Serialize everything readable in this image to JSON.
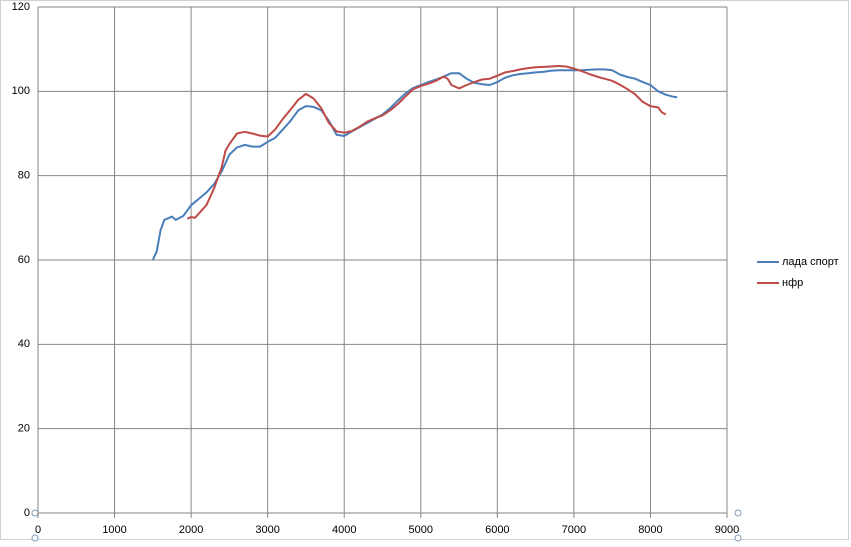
{
  "chart_data": {
    "type": "line",
    "xlim": [
      0,
      9000
    ],
    "xticks": [
      0,
      1000,
      2000,
      3000,
      4000,
      5000,
      6000,
      7000,
      8000,
      9000
    ],
    "ylim": [
      0,
      120
    ],
    "yticks": [
      0,
      20,
      40,
      60,
      80,
      100,
      120
    ],
    "grid": true,
    "legend": "right",
    "series": [
      {
        "name": "лада спорт",
        "color": "#4a7ebb",
        "x": [
          1500,
          1550,
          1600,
          1650,
          1750,
          1800,
          1900,
          2000,
          2100,
          2200,
          2300,
          2400,
          2500,
          2600,
          2700,
          2800,
          2900,
          3000,
          3100,
          3200,
          3300,
          3400,
          3500,
          3600,
          3700,
          3800,
          3900,
          4000,
          4100,
          4200,
          4300,
          4400,
          4500,
          4600,
          4700,
          4800,
          4900,
          5000,
          5100,
          5200,
          5300,
          5400,
          5500,
          5600,
          5700,
          5800,
          5900,
          6000,
          6100,
          6200,
          6300,
          6400,
          6500,
          6600,
          6700,
          6800,
          6900,
          7000,
          7100,
          7200,
          7300,
          7400,
          7500,
          7600,
          7700,
          7800,
          7900,
          8000,
          8100,
          8200,
          8300,
          8350
        ],
        "values": [
          60,
          62,
          67,
          69.5,
          70.3,
          69.5,
          70.5,
          73,
          74.5,
          76,
          78,
          81,
          85,
          86.7,
          87.3,
          86.9,
          86.9,
          88,
          89,
          91,
          93,
          95.5,
          96.5,
          96.3,
          95.5,
          93,
          89.7,
          89.4,
          90.5,
          91.5,
          92.5,
          93.5,
          94.5,
          96,
          97.8,
          99.5,
          100.8,
          101.5,
          102.2,
          102.8,
          103.5,
          104.3,
          104.3,
          103,
          102,
          101.7,
          101.5,
          102.2,
          103.2,
          103.8,
          104.1,
          104.3,
          104.5,
          104.6,
          104.9,
          105,
          105,
          105,
          105,
          105.1,
          105.2,
          105.2,
          105,
          104,
          103.4,
          103,
          102.2,
          101.5,
          100,
          99.2,
          98.7,
          98.6
        ]
      },
      {
        "name": "нфр",
        "color": "#be4b48",
        "x": [
          1950,
          2000,
          2050,
          2100,
          2200,
          2300,
          2400,
          2450,
          2500,
          2600,
          2700,
          2800,
          2900,
          3000,
          3100,
          3200,
          3300,
          3400,
          3500,
          3600,
          3700,
          3800,
          3900,
          4000,
          4100,
          4200,
          4300,
          4400,
          4500,
          4600,
          4700,
          4800,
          4900,
          5000,
          5100,
          5200,
          5300,
          5350,
          5400,
          5500,
          5600,
          5700,
          5800,
          5900,
          6000,
          6100,
          6200,
          6300,
          6400,
          6500,
          6600,
          6700,
          6800,
          6900,
          7000,
          7100,
          7200,
          7300,
          7400,
          7500,
          7600,
          7700,
          7800,
          7900,
          8000,
          8100,
          8150,
          8200
        ],
        "values": [
          69.8,
          70.2,
          70,
          71,
          73,
          77,
          82,
          86,
          87.5,
          90,
          90.4,
          90,
          89.5,
          89.3,
          91,
          93.5,
          95.7,
          98,
          99.4,
          98.3,
          96,
          92.5,
          90.5,
          90.2,
          90.6,
          91.6,
          92.8,
          93.6,
          94.3,
          95.5,
          97,
          98.8,
          100.5,
          101.3,
          101.8,
          102.5,
          103.5,
          103,
          101.5,
          100.7,
          101.5,
          102.2,
          102.8,
          103,
          103.7,
          104.5,
          104.8,
          105.2,
          105.5,
          105.7,
          105.8,
          105.9,
          106,
          105.9,
          105.4,
          104.8,
          104.1,
          103.5,
          103,
          102.5,
          101.6,
          100.5,
          99.3,
          97.5,
          96.5,
          96.2,
          95,
          94.5
        ]
      }
    ]
  }
}
